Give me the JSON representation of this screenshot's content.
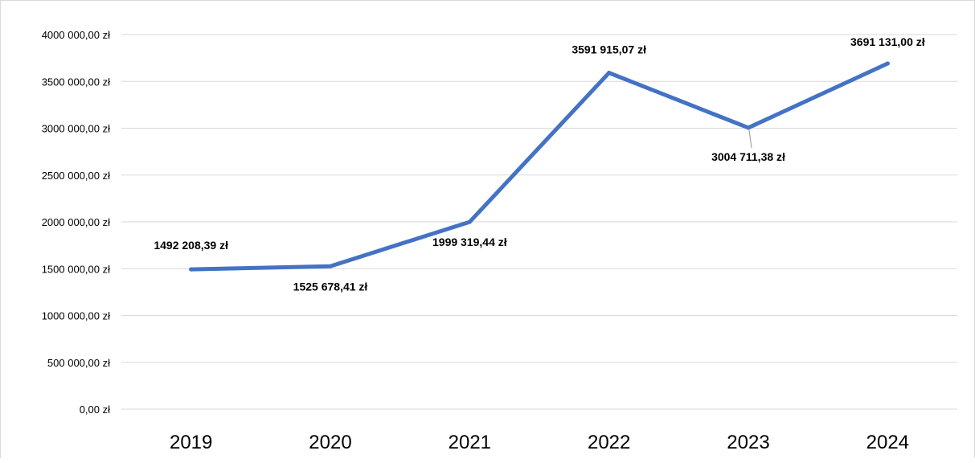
{
  "chart_data": {
    "type": "line",
    "title": "",
    "xlabel": "",
    "ylabel": "",
    "categories": [
      "2019",
      "2020",
      "2021",
      "2022",
      "2023",
      "2024"
    ],
    "series": [
      {
        "values": [
          1492208.39,
          1525678.41,
          1999319.44,
          3591915.07,
          3004711.38,
          3691131.0
        ],
        "labels": [
          "1492 208,39 zł",
          "1525 678,41 zł",
          "1999 319,44 zł",
          "3591 915,07 zł",
          "3004 711,38 zł",
          "3691 131,00 zł"
        ],
        "label_positions": [
          "above",
          "below",
          "below",
          "above",
          "below",
          "above"
        ]
      }
    ],
    "ylim": [
      0,
      4000000
    ],
    "ytick_values": [
      0,
      500000,
      1000000,
      1500000,
      2000000,
      2500000,
      3000000,
      3500000,
      4000000
    ],
    "ytick_labels": [
      "0,00 zł",
      "500 000,00 zł",
      "1000 000,00 zł",
      "1500 000,00 zł",
      "2000 000,00 zł",
      "2500 000,00 zł",
      "3000 000,00 zł",
      "3500 000,00 zł",
      "4000 000,00 zł"
    ],
    "grid": true,
    "legend": "none",
    "colors": {
      "line": "#4472c4",
      "grid": "#d9d9d9"
    }
  }
}
